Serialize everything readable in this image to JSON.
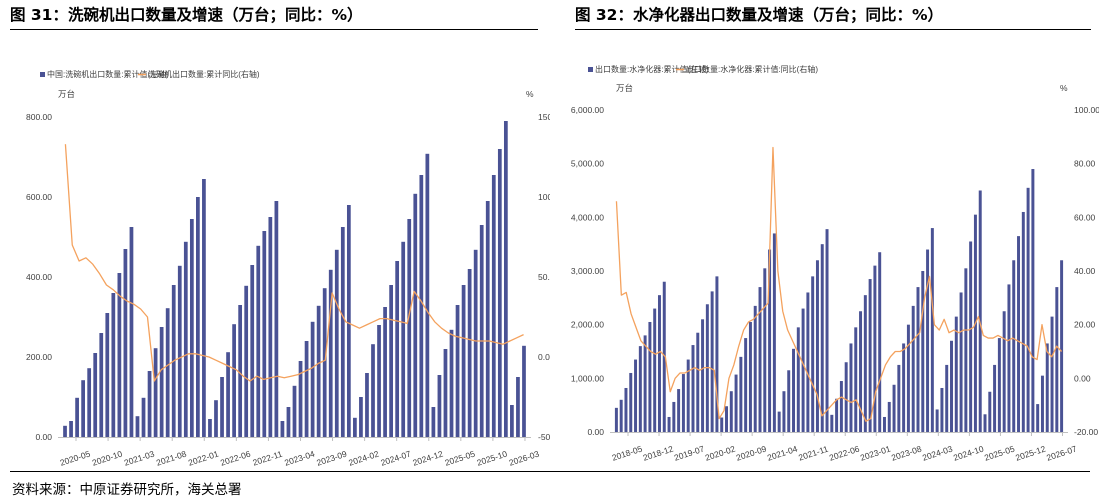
{
  "source": "资料来源：中原证券研究所，海关总署",
  "colors": {
    "bar": "#4a5294",
    "line": "#f4a25e",
    "axis": "#bfbfbf"
  },
  "chart_data": [
    {
      "type": "bar",
      "title": "图 31：洗碗机出口数量及增速（万台；同比：%）",
      "legend": [
        "中国:洗碗机出口数量:累计值(左轴)",
        "洗碗机出口数量:累计同比(右轴)"
      ],
      "legend_position": "top-left",
      "left_unit": "万台",
      "right_unit": "%",
      "left_ticks": [
        "0.00",
        "200.00",
        "400.00",
        "600.00",
        "800.00"
      ],
      "right_ticks": [
        "-50.00",
        "0.00",
        "50.00",
        "100.00",
        "150.00"
      ],
      "x_ticks": [
        "2020-05",
        "2020-10",
        "2021-03",
        "2021-08",
        "2022-01",
        "2022-06",
        "2022-11",
        "2023-04",
        "2023-09",
        "2024-02",
        "2024-07",
        "2024-12",
        "2025-05",
        "2025-10",
        "2026-03"
      ],
      "ylim_left": [
        0,
        800
      ],
      "ylim_right": [
        -50,
        150
      ],
      "series": [
        {
          "name": "中国:洗碗机出口数量:累计值(左轴)",
          "axis": "left",
          "values": [
            28,
            40,
            98,
            142,
            172,
            210,
            260,
            310,
            360,
            410,
            470,
            525,
            52,
            98,
            165,
            222,
            275,
            322,
            380,
            428,
            488,
            545,
            600,
            645,
            45,
            92,
            150,
            212,
            282,
            330,
            378,
            430,
            478,
            515,
            550,
            590,
            40,
            75,
            128,
            190,
            240,
            288,
            328,
            372,
            418,
            468,
            525,
            580,
            48,
            100,
            160,
            232,
            280,
            325,
            380,
            440,
            488,
            545,
            608,
            655,
            708,
            75,
            155,
            220,
            268,
            330,
            380,
            420,
            468,
            530,
            590,
            655,
            720,
            790,
            80,
            150,
            228
          ]
        },
        {
          "name": "洗碗机出口数量:累计同比(右轴)",
          "axis": "right",
          "values": [
            133,
            70,
            60,
            62,
            58,
            52,
            45,
            42,
            38,
            35,
            33,
            30,
            25,
            -15,
            -8,
            -5,
            -2,
            0,
            2,
            2,
            1,
            0,
            -2,
            -4,
            -6,
            -8,
            -12,
            -15,
            -12,
            -14,
            -13,
            -12,
            -13,
            -12,
            -11,
            -9,
            -7,
            -4,
            -2,
            40,
            30,
            22,
            20,
            18,
            20,
            22,
            24,
            24,
            23,
            22,
            21,
            41,
            35,
            28,
            22,
            18,
            15,
            13,
            12,
            11,
            10,
            10,
            10,
            9,
            8,
            10,
            12,
            14
          ]
        }
      ]
    },
    {
      "type": "bar",
      "title": "图 32：水净化器出口数量及增速（万台；同比：%）",
      "legend": [
        "出口数量:水净化器:累计值(左轴)",
        "出口数量:水净化器:累计值:同比(右轴)"
      ],
      "legend_position": "top-left",
      "left_unit": "万台",
      "right_unit": "%",
      "left_ticks": [
        "0.00",
        "1,000.00",
        "2,000.00",
        "3,000.00",
        "4,000.00",
        "5,000.00",
        "6,000.00"
      ],
      "right_ticks": [
        "-20.00",
        "0.00",
        "20.00",
        "40.00",
        "60.00",
        "80.00",
        "100.00"
      ],
      "x_ticks": [
        "2018-05",
        "2018-12",
        "2019-07",
        "2020-02",
        "2020-09",
        "2021-04",
        "2021-11",
        "2022-06",
        "2023-01",
        "2023-08",
        "2024-03",
        "2024-10",
        "2025-05",
        "2025-12",
        "2026-07"
      ],
      "ylim_left": [
        0,
        6000
      ],
      "ylim_right": [
        -20,
        100
      ],
      "series": [
        {
          "name": "出口数量:水净化器:累计值(左轴)",
          "axis": "left",
          "values": [
            450,
            600,
            820,
            1100,
            1350,
            1600,
            1800,
            2050,
            2300,
            2550,
            2800,
            280,
            560,
            800,
            1080,
            1350,
            1620,
            1850,
            2100,
            2380,
            2620,
            2900,
            270,
            480,
            760,
            1070,
            1400,
            1750,
            2050,
            2350,
            2700,
            3050,
            3400,
            3700,
            380,
            760,
            1150,
            1550,
            1950,
            2300,
            2600,
            2900,
            3200,
            3500,
            3780,
            320,
            620,
            950,
            1300,
            1650,
            1950,
            2250,
            2550,
            2850,
            3100,
            3350,
            280,
            560,
            880,
            1250,
            1650,
            2000,
            2350,
            2700,
            3000,
            3400,
            3800,
            420,
            820,
            1250,
            1700,
            2150,
            2600,
            3050,
            3550,
            4050,
            4500,
            330,
            750,
            1250,
            1750,
            2250,
            2750,
            3200,
            3650,
            4100,
            4550,
            4900,
            520,
            1050,
            1650,
            2150,
            2700,
            3200
          ]
        },
        {
          "name": "出口数量:水净化器:累计值:同比(右轴)",
          "axis": "right",
          "values": [
            66,
            31,
            32,
            24,
            19,
            14,
            12,
            10,
            9,
            10,
            8,
            -5,
            0,
            2,
            2,
            3,
            4,
            3,
            4,
            4,
            3,
            -15,
            -12,
            0,
            5,
            12,
            18,
            21,
            22,
            24,
            26,
            28,
            86,
            40,
            25,
            18,
            14,
            10,
            6,
            2,
            -2,
            -6,
            -14,
            -12,
            -10,
            -8,
            -7,
            -8,
            -9,
            -8,
            -12,
            -16,
            -15,
            -5,
            0,
            5,
            8,
            10,
            10,
            11,
            13,
            15,
            17,
            30,
            38,
            20,
            18,
            22,
            17,
            18,
            17,
            18,
            18,
            19,
            23,
            16,
            15,
            15,
            16,
            15,
            14,
            15,
            14,
            13,
            12,
            8,
            7,
            20,
            10,
            8,
            12,
            10
          ]
        }
      ]
    }
  ]
}
